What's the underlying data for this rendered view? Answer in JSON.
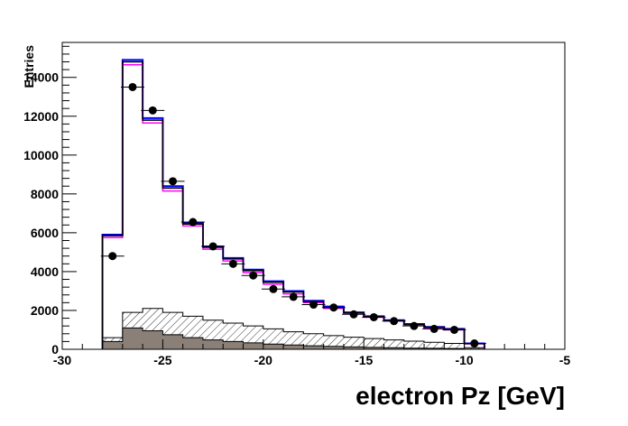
{
  "chart_data": {
    "type": "histogram",
    "xlabel": "electron Pz [GeV]",
    "ylabel": "Entries",
    "xlim": [
      -30,
      -5
    ],
    "ylim": [
      0,
      15800
    ],
    "x_ticks": [
      -30,
      -25,
      -20,
      -15,
      -10,
      -5
    ],
    "y_ticks": [
      0,
      2000,
      4000,
      6000,
      8000,
      10000,
      12000,
      14000
    ],
    "bin_edges": [
      -28,
      -27,
      -26,
      -25,
      -24,
      -23,
      -22,
      -21,
      -20,
      -19,
      -18,
      -17,
      -16,
      -15,
      -14,
      -13,
      -12,
      -11,
      -10,
      -9
    ],
    "grid": false,
    "series": [
      {
        "style": "step-line",
        "color": "#0000ff",
        "values": [
          5900,
          14900,
          11900,
          8400,
          6500,
          5300,
          4700,
          4100,
          3500,
          3000,
          2500,
          2200,
          1900,
          1700,
          1500,
          1300,
          1150,
          1050,
          300
        ]
      },
      {
        "style": "step-line",
        "color": "#ff00ff",
        "values": [
          5750,
          14650,
          11650,
          8150,
          6350,
          5150,
          4550,
          3950,
          3350,
          2850,
          2400,
          2100,
          1850,
          1650,
          1450,
          1250,
          1100,
          1000,
          280
        ]
      },
      {
        "style": "step-line",
        "color": "#000000",
        "values": [
          5850,
          14800,
          11800,
          8300,
          6450,
          5250,
          4650,
          4050,
          3450,
          2950,
          2450,
          2150,
          1880,
          1680,
          1480,
          1280,
          1130,
          1030,
          290
        ]
      },
      {
        "style": "hatched-fill",
        "color": "#000000",
        "values": [
          600,
          1900,
          2100,
          1900,
          1700,
          1500,
          1350,
          1200,
          1050,
          900,
          800,
          700,
          620,
          550,
          480,
          420,
          360,
          300,
          80
        ]
      },
      {
        "style": "solid-fill",
        "color": "#8a8078",
        "values": [
          400,
          1100,
          950,
          750,
          600,
          480,
          400,
          330,
          270,
          220,
          180,
          150,
          120,
          100,
          80,
          60,
          50,
          40,
          10
        ]
      },
      {
        "style": "markers",
        "color": "#000000",
        "x": [
          -27.5,
          -26.5,
          -25.5,
          -24.5,
          -23.5,
          -22.5,
          -21.5,
          -20.5,
          -19.5,
          -18.5,
          -17.5,
          -16.5,
          -15.5,
          -14.5,
          -13.5,
          -12.5,
          -11.5,
          -10.5,
          -9.5
        ],
        "values": [
          4800,
          13500,
          12300,
          8650,
          6550,
          5300,
          4400,
          3800,
          3100,
          2700,
          2300,
          2150,
          1800,
          1650,
          1450,
          1200,
          1050,
          1000,
          300
        ]
      }
    ]
  }
}
